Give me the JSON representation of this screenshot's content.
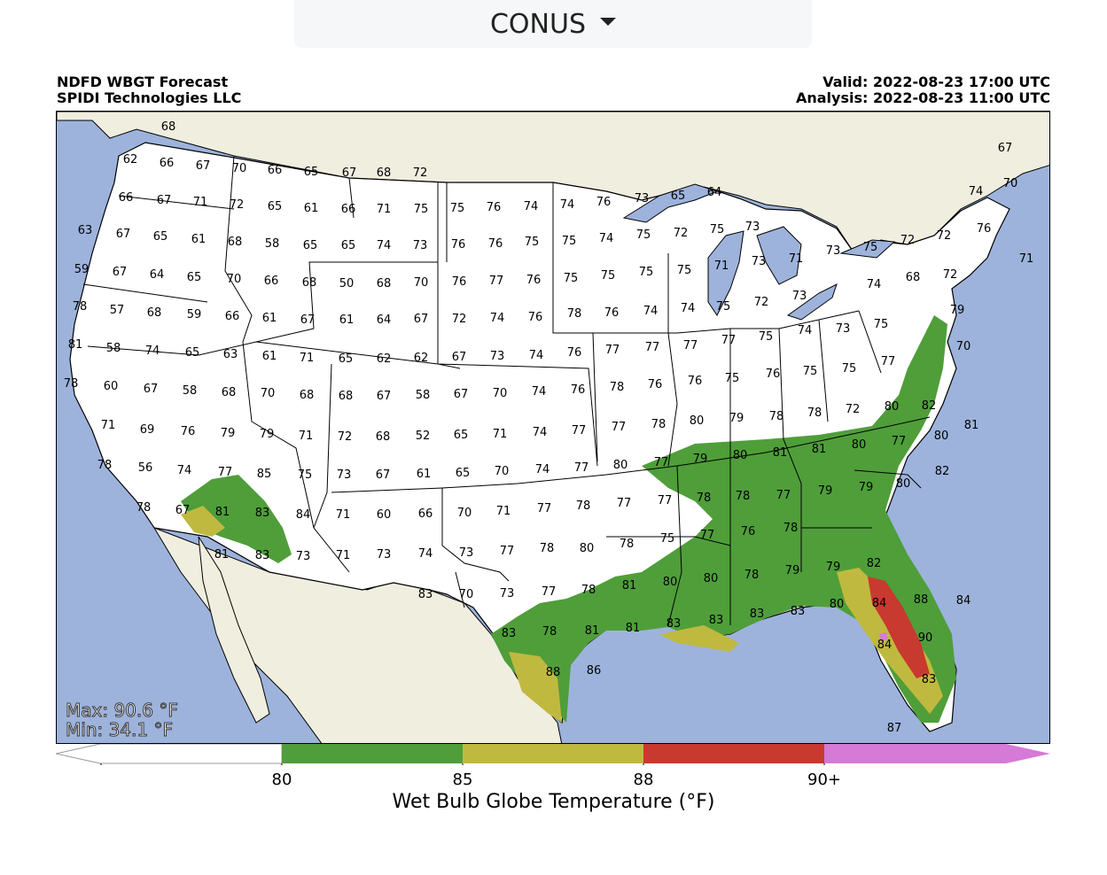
{
  "region_selector": {
    "value": "CONUS",
    "icon": "caret-down-icon"
  },
  "header": {
    "title": "NDFD WBGT Forecast",
    "org": "SPIDI Technologies LLC",
    "valid": "Valid: 2022-08-23 17:00 UTC",
    "analysis": "Analysis: 2022-08-23 11:00 UTC"
  },
  "stats": {
    "max": "Max: 90.6 °F",
    "min": "Min: 34.1 °F"
  },
  "colorbar": {
    "title": "Wet Bulb Globe Temperature (°F)",
    "ticks": [
      "80",
      "85",
      "88",
      "90+"
    ],
    "colors": {
      "below": "#ffffff",
      "b80": "#4f9e3a",
      "b85": "#c0b93f",
      "b88": "#c8392f",
      "b90": "#d57ad6"
    }
  },
  "map_colors": {
    "ocean": "#9db3dc",
    "land": "#efeedf",
    "land_us": "#ffffff",
    "lake": "#9db3dc"
  },
  "values": [
    "68",
    "62",
    "66",
    "67",
    "70",
    "66",
    "65",
    "67",
    "68",
    "72",
    "66",
    "67",
    "71",
    "72",
    "65",
    "61",
    "66",
    "71",
    "75",
    "75",
    "76",
    "74",
    "74",
    "76",
    "73",
    "65",
    "64",
    "67",
    "74",
    "70",
    "63",
    "67",
    "65",
    "61",
    "68",
    "58",
    "65",
    "65",
    "74",
    "73",
    "76",
    "76",
    "75",
    "75",
    "74",
    "75",
    "72",
    "75",
    "73",
    "75",
    "72",
    "72",
    "76",
    "71",
    "59",
    "67",
    "64",
    "65",
    "70",
    "66",
    "68",
    "50",
    "68",
    "70",
    "76",
    "77",
    "76",
    "75",
    "75",
    "75",
    "75",
    "71",
    "73",
    "71",
    "73",
    "74",
    "68",
    "72",
    "78",
    "57",
    "68",
    "59",
    "66",
    "61",
    "67",
    "61",
    "64",
    "67",
    "72",
    "74",
    "76",
    "78",
    "76",
    "74",
    "74",
    "75",
    "72",
    "73",
    "79",
    "81",
    "58",
    "74",
    "65",
    "63",
    "61",
    "71",
    "65",
    "62",
    "62",
    "67",
    "73",
    "74",
    "76",
    "77",
    "77",
    "77",
    "77",
    "75",
    "74",
    "73",
    "75",
    "70",
    "78",
    "60",
    "67",
    "58",
    "68",
    "70",
    "68",
    "68",
    "67",
    "58",
    "67",
    "70",
    "74",
    "76",
    "78",
    "76",
    "76",
    "75",
    "76",
    "75",
    "75",
    "77",
    "71",
    "69",
    "76",
    "79",
    "79",
    "71",
    "72",
    "68",
    "52",
    "65",
    "71",
    "74",
    "77",
    "77",
    "78",
    "80",
    "79",
    "78",
    "78",
    "72",
    "80",
    "82",
    "81",
    "78",
    "56",
    "74",
    "77",
    "85",
    "75",
    "73",
    "67",
    "61",
    "65",
    "70",
    "74",
    "77",
    "80",
    "77",
    "79",
    "80",
    "81",
    "81",
    "80",
    "77",
    "80",
    "82",
    "78",
    "67",
    "81",
    "83",
    "84",
    "71",
    "60",
    "66",
    "70",
    "71",
    "77",
    "78",
    "77",
    "77",
    "78",
    "78",
    "77",
    "79",
    "79",
    "80",
    "81",
    "83",
    "73",
    "71",
    "73",
    "74",
    "73",
    "77",
    "78",
    "80",
    "78",
    "75",
    "77",
    "76",
    "78",
    "79",
    "82",
    "83",
    "70",
    "73",
    "77",
    "78",
    "81",
    "80",
    "80",
    "78",
    "79",
    "80",
    "84",
    "88",
    "84",
    "83",
    "78",
    "81",
    "81",
    "83",
    "83",
    "83",
    "83",
    "84",
    "90",
    "88",
    "86",
    "83",
    "87",
    "85"
  ]
}
